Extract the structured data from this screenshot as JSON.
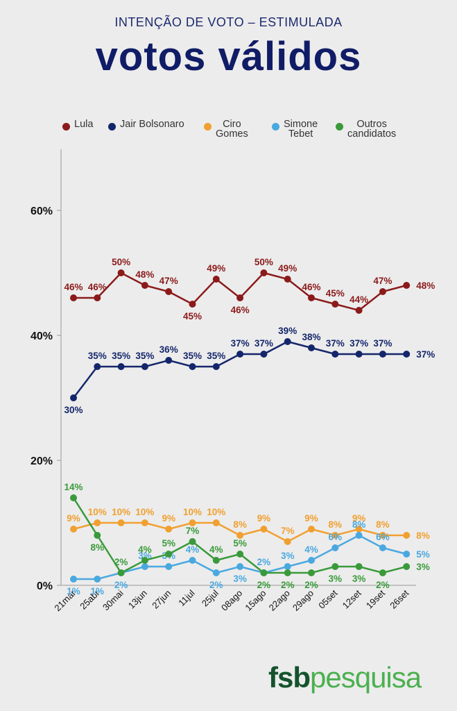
{
  "header": {
    "subtitle": "INTENÇÃO DE VOTO – ESTIMULADA",
    "title": "votos válidos"
  },
  "logo": {
    "part1": "fsb",
    "part2": "pesquisa"
  },
  "chart_data": {
    "type": "line",
    "title": "votos válidos",
    "subtitle": "INTENÇÃO DE VOTO – ESTIMULADA",
    "xlabel": "",
    "ylabel": "",
    "ylim": [
      0,
      70
    ],
    "y_ticks": [
      0,
      20,
      40,
      60
    ],
    "y_tick_labels": [
      "0%",
      "20%",
      "40%",
      "60%"
    ],
    "grid": false,
    "legend_position": "top",
    "categories": [
      "21mar",
      "25abr",
      "30mai",
      "13jun",
      "27jun",
      "11jul",
      "25jul",
      "08ago",
      "15ago",
      "22ago",
      "29ago",
      "05set",
      "12set",
      "19set",
      "26set"
    ],
    "series": [
      {
        "name": "Lula",
        "color": "#8b1a1a",
        "values": [
          46,
          46,
          50,
          48,
          47,
          45,
          49,
          46,
          50,
          49,
          46,
          45,
          44,
          47,
          48
        ],
        "labels": [
          "46%",
          "46%",
          "50%",
          "48%",
          "47%",
          "45%",
          "49%",
          "46%",
          "50%",
          "49%",
          "46%",
          "45%",
          "44%",
          "47%",
          "48%"
        ]
      },
      {
        "name": "Jair Bolsonaro",
        "color": "#14266b",
        "values": [
          30,
          35,
          35,
          35,
          36,
          35,
          35,
          37,
          37,
          39,
          38,
          37,
          37,
          37,
          37
        ],
        "labels": [
          "30%",
          "35%",
          "35%",
          "35%",
          "36%",
          "35%",
          "35%",
          "37%",
          "37%",
          "39%",
          "38%",
          "37%",
          "37%",
          "37%",
          "37%"
        ]
      },
      {
        "name": "Ciro Gomes",
        "color": "#f0a030",
        "values": [
          9,
          10,
          10,
          10,
          9,
          10,
          10,
          8,
          9,
          7,
          9,
          8,
          9,
          8,
          8
        ],
        "labels": [
          "9%",
          "10%",
          "10%",
          "10%",
          "9%",
          "10%",
          "10%",
          "8%",
          "9%",
          "7%",
          "9%",
          "8%",
          "9%",
          "8%",
          "8%"
        ]
      },
      {
        "name": "Simone Tebet",
        "color": "#4aa8e0",
        "values": [
          1,
          1,
          2,
          3,
          3,
          4,
          2,
          3,
          2,
          3,
          4,
          6,
          8,
          6,
          5
        ],
        "labels": [
          "1%",
          "1%",
          "2%",
          "3%",
          "3%",
          "4%",
          "2%",
          "3%",
          "2%",
          "3%",
          "4%",
          "6%",
          "8%",
          "6%",
          "5%"
        ]
      },
      {
        "name": "Outros candidatos",
        "color": "#3a9a3a",
        "values": [
          14,
          8,
          2,
          4,
          5,
          7,
          4,
          5,
          2,
          2,
          2,
          3,
          3,
          2,
          3
        ],
        "labels": [
          "14%",
          "8%",
          "2%",
          "4%",
          "5%",
          "7%",
          "4%",
          "5%",
          "2%",
          "2%",
          "2%",
          "3%",
          "3%",
          "2%",
          "3%"
        ]
      }
    ]
  },
  "legend": [
    {
      "label": "Lula",
      "color": "#8b1a1a"
    },
    {
      "label": "Jair Bolsonaro",
      "color": "#14266b"
    },
    {
      "label": "Ciro\nGomes",
      "color": "#f0a030"
    },
    {
      "label": "Simone\nTebet",
      "color": "#4aa8e0"
    },
    {
      "label": "Outros\ncandidatos",
      "color": "#3a9a3a"
    }
  ]
}
